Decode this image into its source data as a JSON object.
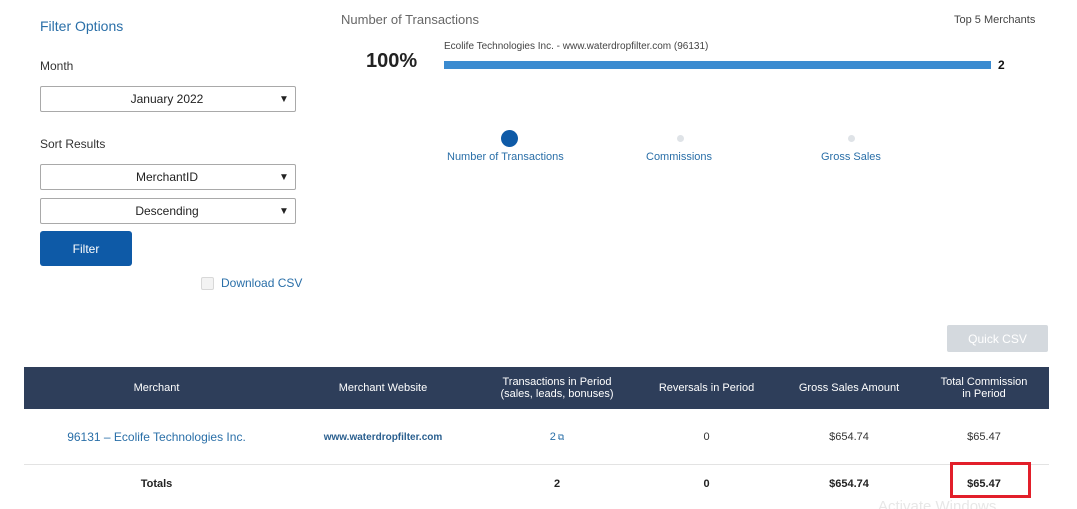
{
  "filter": {
    "title": "Filter Options",
    "month_label": "Month",
    "month_value": "January 2022",
    "sort_label": "Sort Results",
    "sort_by_value": "MerchantID",
    "sort_order_value": "Descending",
    "filter_button": "Filter",
    "download_csv": "Download CSV"
  },
  "chart": {
    "title": "Number of Transactions",
    "top_label": "Top 5 Merchants",
    "percent_label": "100%",
    "metrics": [
      "Number of Transactions",
      "Commissions",
      "Gross Sales"
    ],
    "active_metric": "Number of Transactions",
    "accent_color": "#3b8bd0"
  },
  "chart_data": {
    "type": "bar",
    "orientation": "horizontal",
    "categories": [
      "Ecolife Technologies Inc. - www.waterdropfilter.com (96131)"
    ],
    "values": [
      2
    ],
    "value_labels": [
      "2"
    ],
    "share_percent": [
      100
    ]
  },
  "quick_csv": "Quick CSV",
  "table": {
    "header_color": "#2e3e5a",
    "headers": {
      "merchant": "Merchant",
      "website": "Merchant Website",
      "transactions": "Transactions in Period\n(sales, leads, bonuses)",
      "reversals": "Reversals in Period",
      "gross": "Gross Sales Amount",
      "commission": "Total Commission\nin Period"
    },
    "rows": [
      {
        "merchant": "96131 – Ecolife Technologies Inc.",
        "website": "www.waterdropfilter.com",
        "transactions": "2",
        "reversals": "0",
        "gross": "$654.74",
        "commission": "$65.47"
      }
    ],
    "totals": {
      "label": "Totals",
      "transactions": "2",
      "reversals": "0",
      "gross": "$654.74",
      "commission": "$65.47"
    },
    "highlight_color": "#e21f2a"
  },
  "watermark": "Activate Windows"
}
